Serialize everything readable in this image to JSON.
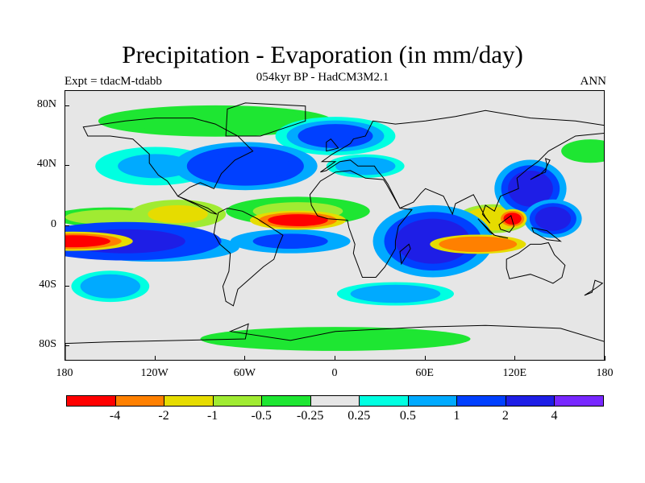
{
  "header": {
    "title": "Precipitation - Evaporation (in mm/day)",
    "subtitle": "054kyr BP - HadCM3M2.1",
    "experiment": "Expt = tdacM-tdabb",
    "season": "ANN"
  },
  "axes": {
    "y_ticks": [
      {
        "label": "80N",
        "value": 80
      },
      {
        "label": "40N",
        "value": 40
      },
      {
        "label": "0",
        "value": 0
      },
      {
        "label": "40S",
        "value": -40
      },
      {
        "label": "80S",
        "value": -80
      }
    ],
    "x_ticks": [
      {
        "label": "180",
        "value": -180
      },
      {
        "label": "120W",
        "value": -120
      },
      {
        "label": "60W",
        "value": -60
      },
      {
        "label": "0",
        "value": 0
      },
      {
        "label": "60E",
        "value": 60
      },
      {
        "label": "120E",
        "value": 120
      },
      {
        "label": "180",
        "value": 180
      }
    ],
    "lat_range": [
      -90,
      90
    ],
    "lon_range": [
      -180,
      180
    ]
  },
  "colorbar": {
    "colors": [
      "#ff0000",
      "#ff8000",
      "#e6dc00",
      "#a0eb32",
      "#1ee632",
      "#e6e6e6",
      "#00ffe1",
      "#00aaff",
      "#0040ff",
      "#1e1ee6",
      "#7828ff"
    ],
    "labels": [
      "-4",
      "-2",
      "-1",
      "-0.5",
      "-0.25",
      "0.25",
      "0.5",
      "1",
      "2",
      "4"
    ],
    "boundaries": [
      -4,
      -2,
      -1,
      -0.5,
      -0.25,
      0.25,
      0.5,
      1,
      2,
      4
    ]
  },
  "field_blobs": [
    {
      "lon": -175,
      "lat": -10,
      "rlon": 25,
      "rlat": 4,
      "value": -5
    },
    {
      "lon": -140,
      "lat": -10,
      "rlon": 40,
      "rlat": 8,
      "value": 3
    },
    {
      "lon": -120,
      "lat": -14,
      "rlon": 35,
      "rlat": 6,
      "value": 1.5
    },
    {
      "lon": -150,
      "lat": 6,
      "rlon": 30,
      "rlat": 5,
      "value": -0.6
    },
    {
      "lon": -105,
      "lat": 8,
      "rlon": 20,
      "rlat": 6,
      "value": -1.5
    },
    {
      "lon": -25,
      "lat": 4,
      "rlon": 20,
      "rlat": 4,
      "value": -4.5
    },
    {
      "lon": -25,
      "lat": 10,
      "rlon": 30,
      "rlat": 6,
      "value": -0.8
    },
    {
      "lon": -30,
      "lat": -10,
      "rlon": 25,
      "rlat": 5,
      "value": 1.5
    },
    {
      "lon": 65,
      "lat": -10,
      "rlon": 25,
      "rlat": 15,
      "value": 2.5
    },
    {
      "lon": 95,
      "lat": -12,
      "rlon": 20,
      "rlat": 4,
      "value": -4
    },
    {
      "lon": 105,
      "lat": 5,
      "rlon": 15,
      "rlat": 6,
      "value": -2
    },
    {
      "lon": 118,
      "lat": 5,
      "rlon": 6,
      "rlat": 4,
      "value": -5
    },
    {
      "lon": 130,
      "lat": 25,
      "rlon": 15,
      "rlat": 12,
      "value": 2
    },
    {
      "lon": 145,
      "lat": 5,
      "rlon": 12,
      "rlat": 8,
      "value": 2
    },
    {
      "lon": -60,
      "lat": 40,
      "rlon": 30,
      "rlat": 10,
      "value": 1.8
    },
    {
      "lon": -80,
      "lat": 70,
      "rlon": 60,
      "rlat": 8,
      "value": -0.5
    },
    {
      "lon": 0,
      "lat": 60,
      "rlon": 25,
      "rlat": 8,
      "value": 1.2
    },
    {
      "lon": 20,
      "lat": 40,
      "rlon": 20,
      "rlat": 6,
      "value": 0.7
    },
    {
      "lon": -120,
      "lat": 40,
      "rlon": 25,
      "rlat": 8,
      "value": 0.8
    },
    {
      "lon": 0,
      "lat": -75,
      "rlon": 90,
      "rlat": 8,
      "value": -0.4
    },
    {
      "lon": -150,
      "lat": -40,
      "rlon": 20,
      "rlat": 8,
      "value": 0.7
    },
    {
      "lon": 40,
      "lat": -45,
      "rlon": 30,
      "rlat": 6,
      "value": 0.6
    },
    {
      "lon": 170,
      "lat": 50,
      "rlon": 15,
      "rlat": 6,
      "value": -0.5
    }
  ]
}
